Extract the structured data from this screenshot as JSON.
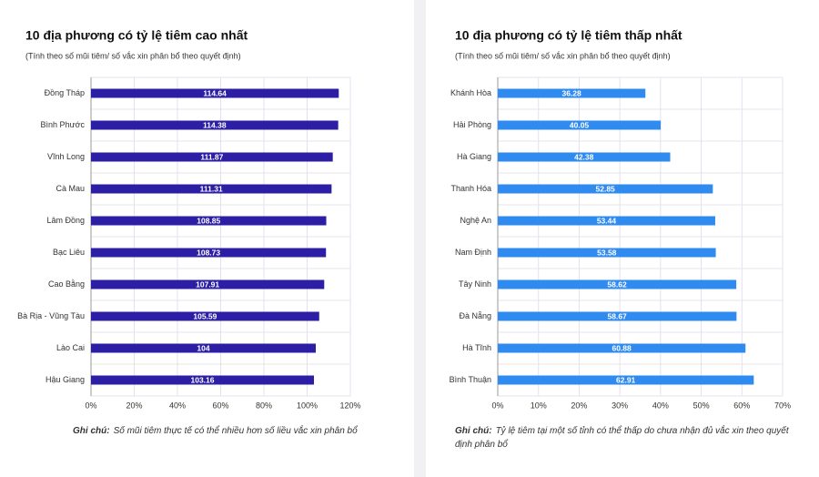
{
  "chart_data": [
    {
      "type": "bar",
      "orientation": "horizontal",
      "title": "10 địa phương có tỷ lệ tiêm cao nhất",
      "subtitle": "(Tính theo số mũi tiêm/ số vắc xin phân bổ theo quyết định)",
      "categories": [
        "Đồng Tháp",
        "Bình Phước",
        "Vĩnh Long",
        "Cà Mau",
        "Lâm Đồng",
        "Bạc Liêu",
        "Cao Bằng",
        "Bà Rịa - Vũng Tàu",
        "Lào Cai",
        "Hậu Giang"
      ],
      "values": [
        114.64,
        114.38,
        111.87,
        111.31,
        108.85,
        108.73,
        107.91,
        105.59,
        104,
        103.16
      ],
      "color": "#2d1fa5",
      "xlim": [
        0,
        120
      ],
      "xticks": [
        {
          "value": 0,
          "label": "0%"
        },
        {
          "value": 20,
          "label": "20%"
        },
        {
          "value": 40,
          "label": "40%"
        },
        {
          "value": 60,
          "label": "60%"
        },
        {
          "value": 80,
          "label": "80%"
        },
        {
          "value": 100,
          "label": "100%"
        },
        {
          "value": 120,
          "label": "120%"
        }
      ],
      "grid": true,
      "note_label": "Ghi chú:",
      "note": "Số mũi tiêm thực tế có thể nhiều hơn số liều vắc xin phân bổ"
    },
    {
      "type": "bar",
      "orientation": "horizontal",
      "title": "10 địa phương có tỷ lệ tiêm thấp nhất",
      "subtitle": "(Tính theo số mũi tiêm/ số vắc xin phân bổ theo quyết định)",
      "categories": [
        "Khánh Hòa",
        "Hải Phòng",
        "Hà Giang",
        "Thanh Hóa",
        "Nghệ An",
        "Nam Định",
        "Tây Ninh",
        "Đà Nẵng",
        "Hà Tĩnh",
        "Bình Thuận"
      ],
      "values": [
        36.28,
        40.05,
        42.38,
        52.85,
        53.44,
        53.58,
        58.62,
        58.67,
        60.88,
        62.91
      ],
      "color": "#2f8bf0",
      "xlim": [
        0,
        70
      ],
      "xticks": [
        {
          "value": 0,
          "label": "0%"
        },
        {
          "value": 10,
          "label": "10%"
        },
        {
          "value": 20,
          "label": "20%"
        },
        {
          "value": 30,
          "label": "30%"
        },
        {
          "value": 40,
          "label": "40%"
        },
        {
          "value": 50,
          "label": "50%"
        },
        {
          "value": 60,
          "label": "60%"
        },
        {
          "value": 70,
          "label": "70%"
        }
      ],
      "grid": true,
      "note_label": "Ghi chú:",
      "note": "Tỷ lệ tiêm tại một số tỉnh có thể thấp do chưa nhận đủ vắc xin theo quyết định phân bổ"
    }
  ]
}
